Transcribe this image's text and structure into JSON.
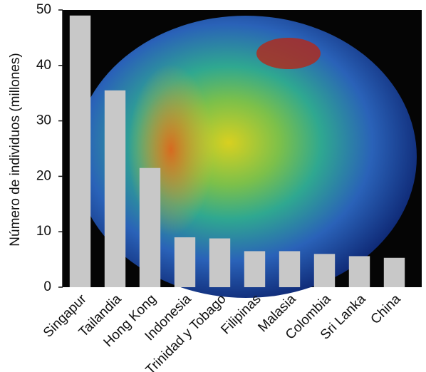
{
  "chart_data": {
    "type": "bar",
    "y_label": "Número de individuos (millones)",
    "categories": [
      "Singapur",
      "Tailandia",
      "Hong Kong",
      "Indonesia",
      "Trinidad y Tobago",
      "Filipinas",
      "Malasia",
      "Colombia",
      "Sri Lanka",
      "China"
    ],
    "values": [
      49,
      35.5,
      21.5,
      9,
      8.8,
      6.5,
      6.5,
      6,
      5.6,
      5.3
    ],
    "color": "#c8c8c8",
    "ylim": [
      0,
      50
    ],
    "yticks": [
      0,
      10,
      20,
      30,
      40,
      50
    ]
  }
}
